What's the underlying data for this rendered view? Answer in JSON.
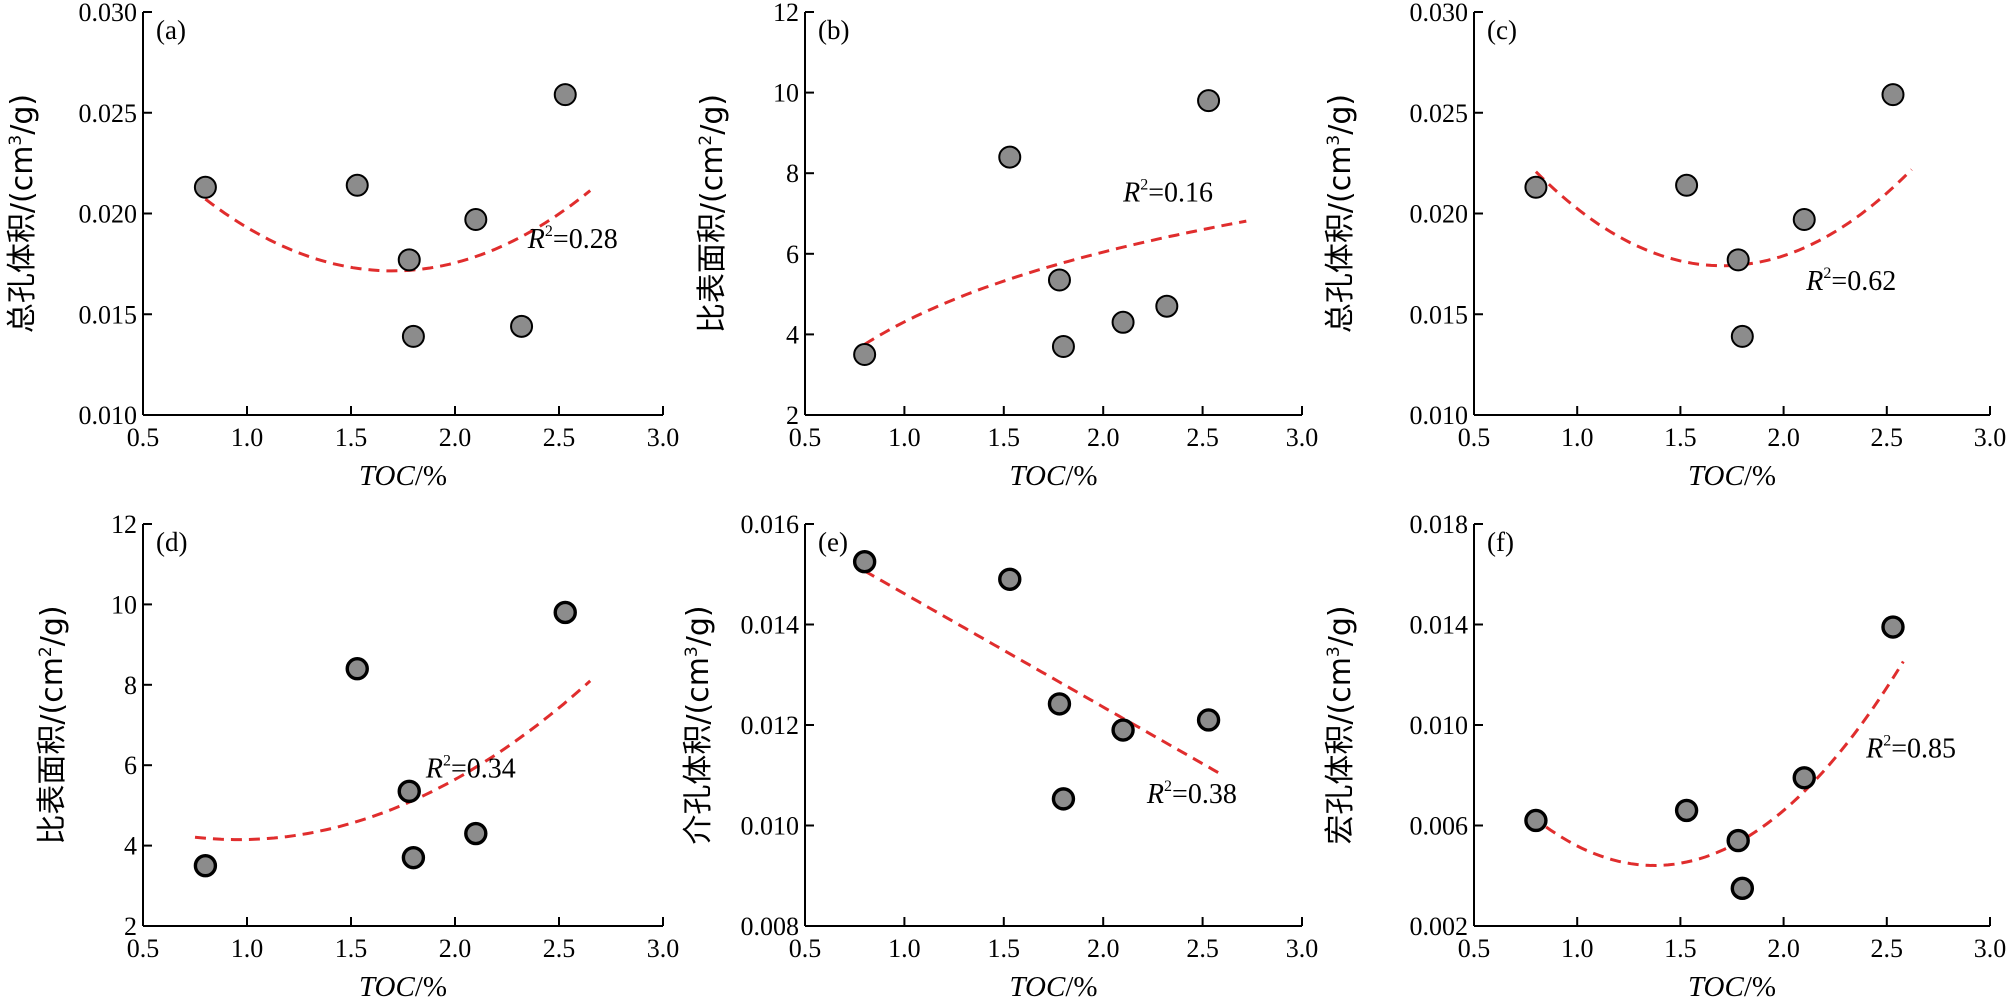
{
  "chart_data": [
    {
      "type": "scatter",
      "panel_label": "(a)",
      "ylabel_main": "总孔体积/(cm",
      "ylabel_sup": "3",
      "ylabel_tail": "/g)",
      "xlabel_main": "TOC",
      "xlabel_tail": "/%",
      "xlim": [
        0.5,
        3.0
      ],
      "ylim": [
        0.01,
        0.03
      ],
      "xticks": [
        "0.5",
        "1.0",
        "1.5",
        "2.0",
        "2.5",
        "3.0"
      ],
      "yticks": [
        "0.010",
        "0.015",
        "0.020",
        "0.025",
        "0.030"
      ],
      "points": [
        [
          0.8,
          0.0213
        ],
        [
          1.53,
          0.0214
        ],
        [
          1.78,
          0.0177
        ],
        [
          1.8,
          0.0139
        ],
        [
          2.1,
          0.0197
        ],
        [
          2.32,
          0.0144
        ],
        [
          2.53,
          0.0259
        ]
      ],
      "fit": {
        "kind": "quadratic",
        "coef": [
          0.02988,
          -0.01498,
          0.004408
        ],
        "x_range": [
          0.8,
          2.65
        ]
      },
      "r2_base": "R",
      "r2_sup": "2",
      "r2_value": "=0.28",
      "r2_pos": [
        2.35,
        0.0183
      ]
    },
    {
      "type": "scatter",
      "panel_label": "(b)",
      "ylabel_main": "比表面积/(cm",
      "ylabel_sup": "2",
      "ylabel_tail": "/g)",
      "xlabel_main": "TOC",
      "xlabel_tail": "/%",
      "xlim": [
        0.5,
        3.0
      ],
      "ylim": [
        2,
        12
      ],
      "xticks": [
        "0.5",
        "1.0",
        "1.5",
        "2.0",
        "2.5",
        "3.0"
      ],
      "yticks": [
        "2",
        "4",
        "6",
        "8",
        "10",
        "12"
      ],
      "points": [
        [
          0.8,
          3.5
        ],
        [
          1.53,
          8.4
        ],
        [
          1.78,
          5.35
        ],
        [
          1.8,
          3.7
        ],
        [
          2.1,
          4.3
        ],
        [
          2.32,
          4.7
        ],
        [
          2.53,
          9.8
        ]
      ],
      "fit": {
        "kind": "log",
        "a": 4.31,
        "b": 2.5,
        "x_range": [
          0.8,
          2.72
        ]
      },
      "r2_base": "R",
      "r2_sup": "2",
      "r2_value": "=0.16",
      "r2_pos": [
        2.1,
        7.3
      ]
    },
    {
      "type": "scatter",
      "panel_label": "(c)",
      "ylabel_main": "总孔体积/(cm",
      "ylabel_sup": "3",
      "ylabel_tail": "/g)",
      "xlabel_main": "TOC",
      "xlabel_tail": "/%",
      "xlim": [
        0.5,
        3.0
      ],
      "ylim": [
        0.01,
        0.03
      ],
      "xticks": [
        "0.5",
        "1.0",
        "1.5",
        "2.0",
        "2.5",
        "3.0"
      ],
      "yticks": [
        "0.010",
        "0.015",
        "0.020",
        "0.025",
        "0.030"
      ],
      "points": [
        [
          0.8,
          0.0213
        ],
        [
          1.53,
          0.0214
        ],
        [
          1.78,
          0.0177
        ],
        [
          1.8,
          0.0139
        ],
        [
          2.1,
          0.0197
        ],
        [
          2.53,
          0.0259
        ]
      ],
      "fit": {
        "kind": "quadratic",
        "coef": [
          0.03398,
          -0.01944,
          0.005701
        ],
        "x_range": [
          0.8,
          2.62
        ]
      },
      "r2_base": "R",
      "r2_sup": "2",
      "r2_value": "=0.62",
      "r2_pos": [
        2.11,
        0.0162
      ]
    },
    {
      "type": "scatter",
      "panel_label": "(d)",
      "ylabel_main": "比表面积/(cm",
      "ylabel_sup": "2",
      "ylabel_tail": "/g)",
      "xlabel_main": "TOC",
      "xlabel_tail": "/%",
      "xlim": [
        0.5,
        3.0
      ],
      "ylim": [
        2,
        12
      ],
      "xticks": [
        "0.5",
        "1.0",
        "1.5",
        "2.0",
        "2.5",
        "3.0"
      ],
      "yticks": [
        "2",
        "4",
        "6",
        "8",
        "10",
        "12"
      ],
      "points": [
        [
          0.8,
          3.5
        ],
        [
          1.53,
          8.4
        ],
        [
          1.78,
          5.35
        ],
        [
          1.8,
          3.7
        ],
        [
          2.1,
          4.3
        ],
        [
          2.53,
          9.8
        ]
      ],
      "fit": {
        "kind": "quadratic",
        "coef": [
          5.416,
          -2.645,
          1.38
        ],
        "x_range": [
          0.75,
          2.65
        ]
      },
      "r2_base": "R",
      "r2_sup": "2",
      "r2_value": "=0.34",
      "r2_pos": [
        1.86,
        5.7
      ]
    },
    {
      "type": "scatter",
      "panel_label": "(e)",
      "ylabel_main": "介孔体积/(cm",
      "ylabel_sup": "3",
      "ylabel_tail": "/g)",
      "xlabel_main": "TOC",
      "xlabel_tail": "/%",
      "xlim": [
        0.5,
        3.0
      ],
      "ylim": [
        0.008,
        0.016
      ],
      "xticks": [
        "0.5",
        "1.0",
        "1.5",
        "2.0",
        "2.5",
        "3.0"
      ],
      "yticks": [
        "0.008",
        "0.010",
        "0.012",
        "0.014",
        "0.016"
      ],
      "points": [
        [
          0.8,
          0.01525
        ],
        [
          1.53,
          0.0149
        ],
        [
          1.78,
          0.01242
        ],
        [
          1.8,
          0.01053
        ],
        [
          2.1,
          0.0119
        ],
        [
          2.53,
          0.0121
        ]
      ],
      "fit": {
        "kind": "quadratic",
        "coef": [
          0.01687,
          -0.002256,
          0.0
        ],
        "x_range": [
          0.8,
          2.58
        ]
      },
      "r2_base": "R",
      "r2_sup": "2",
      "r2_value": "=0.38",
      "r2_pos": [
        2.22,
        0.01045
      ]
    },
    {
      "type": "scatter",
      "panel_label": "(f)",
      "ylabel_main": "宏孔体积/(cm",
      "ylabel_sup": "3",
      "ylabel_tail": "/g)",
      "xlabel_main": "TOC",
      "xlabel_tail": "/%",
      "xlim": [
        0.5,
        3.0
      ],
      "ylim": [
        0.002,
        0.018
      ],
      "xticks": [
        "0.5",
        "1.0",
        "1.5",
        "2.0",
        "2.5",
        "3.0"
      ],
      "yticks": [
        "0.002",
        "0.006",
        "0.010",
        "0.014",
        "0.018"
      ],
      "points": [
        [
          0.8,
          0.0062
        ],
        [
          1.53,
          0.0066
        ],
        [
          1.78,
          0.0054
        ],
        [
          1.8,
          0.0035
        ],
        [
          2.1,
          0.0079
        ],
        [
          2.53,
          0.0139
        ]
      ],
      "fit": {
        "kind": "quadratic",
        "coef": [
          0.01493,
          -0.01532,
          0.005577
        ],
        "x_range": [
          0.78,
          2.58
        ]
      },
      "r2_base": "R",
      "r2_sup": "2",
      "r2_value": "=0.85",
      "r2_pos": [
        2.4,
        0.0087
      ]
    }
  ],
  "colors": {
    "fit_line": "#e02d2d",
    "marker_fill": "#8c8c8c",
    "marker_stroke": "#000000",
    "axis": "#000000"
  }
}
